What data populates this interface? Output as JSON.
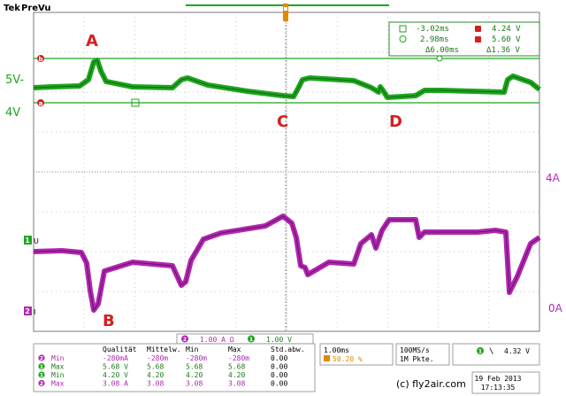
{
  "header": {
    "brand": "Tek",
    "acq_state": "PreVu"
  },
  "colors": {
    "ch1": "#1fa51f",
    "ch2": "#b027b0",
    "trigger": "#e08a00",
    "marker": "#d22020",
    "grid": "#bfbfbf",
    "panel_border": "#2a8a2a"
  },
  "channel_labels": {
    "ch1_top": "5V-",
    "ch1_bottom": "4V",
    "ch2_top": "4A",
    "ch2_bottom": "0A",
    "ch1_gnd_letter": "U",
    "ch2_gnd_letter": "I"
  },
  "annotations": [
    "A",
    "B",
    "C",
    "D"
  ],
  "cursor_readout": {
    "t1": "-3.02ms",
    "t2": "2.98ms",
    "dt": "Δ6.00ms",
    "v1": "4.24 V",
    "v2": "5.60 V",
    "dv": "Δ1.36 V",
    "v1_marker": "a",
    "v2_marker": "b"
  },
  "scale_bar": {
    "ch2_scale": "1.00 A Ω",
    "ch1_scale": "1.00 V",
    "ch2_index": "2",
    "ch1_index": "1"
  },
  "measurements": {
    "headers": [
      "Qualität",
      "Mittelw.",
      "Min",
      "Max",
      "Std.abw."
    ],
    "rows": [
      {
        "ch": "2",
        "label": "Min",
        "values": [
          "-280mA",
          "-280m",
          "-280m",
          "-280m",
          "0.00"
        ]
      },
      {
        "ch": "1",
        "label": "Max",
        "values": [
          "5.68 V",
          "5.68",
          "5.68",
          "5.68",
          "0.00"
        ]
      },
      {
        "ch": "1",
        "label": "Min",
        "values": [
          "4.20 V",
          "4.20",
          "4.20",
          "4.20",
          "0.00"
        ]
      },
      {
        "ch": "2",
        "label": "Max",
        "values": [
          "3.08 A",
          "3.08",
          "3.08",
          "3.08",
          "0.00"
        ]
      }
    ]
  },
  "timebase": {
    "per_div": "1.00ms",
    "trig_pos": "50.20 %"
  },
  "acquisition": {
    "rate": "100MS/s",
    "points": "1M Pkte."
  },
  "trigger_readout": {
    "channel": "1",
    "slope": "\\",
    "level": "4.32 V"
  },
  "footer": {
    "credit": "(c) fly2air.com",
    "date": "19 Feb 2013",
    "time": "17:13:35"
  }
}
